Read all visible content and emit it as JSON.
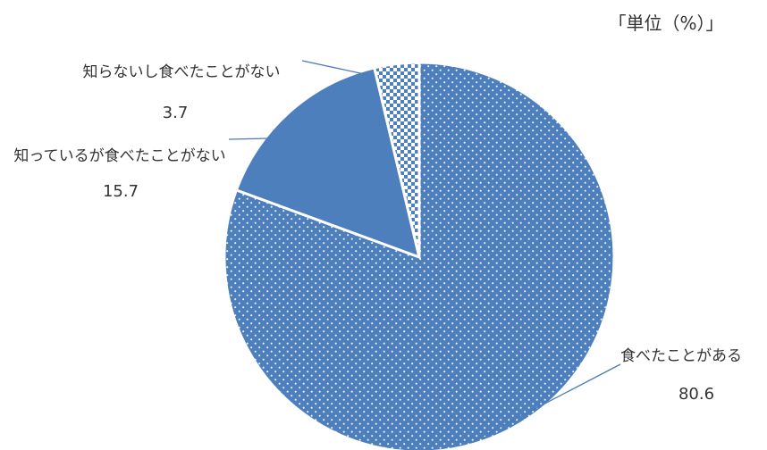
{
  "chart_data": {
    "type": "pie",
    "unit_label": "「単位（%）」",
    "start_angle_deg": 0,
    "direction": "clockwise",
    "slices": [
      {
        "label": "食べたことがある",
        "value": 80.6,
        "value_text": "80.6",
        "color": "#4e7fbd",
        "pattern": "dots"
      },
      {
        "label": "知っているが食べたことがない",
        "value": 15.7,
        "value_text": "15.7",
        "color": "#4e7fbd",
        "pattern": "solid"
      },
      {
        "label": "知らないし食べたことがない",
        "value": 3.7,
        "value_text": "3.7",
        "color": "#4e7fbd",
        "pattern": "checker"
      }
    ],
    "colors": {
      "primary": "#4e7fbd",
      "leader": "#4a7bb7",
      "text": "#333333"
    }
  }
}
